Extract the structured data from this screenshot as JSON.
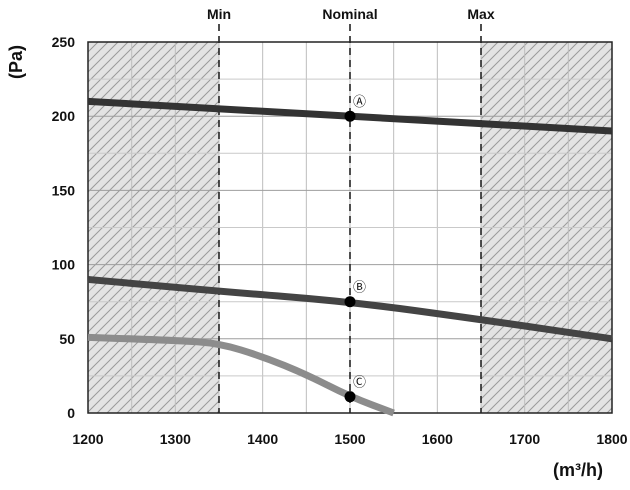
{
  "chart_data": {
    "type": "line",
    "xlabel": "(m³/h)",
    "ylabel": "(Pa)",
    "xlim": [
      1200,
      1800
    ],
    "ylim": [
      0,
      250
    ],
    "x_ticks": [
      "1200",
      "1300",
      "1400",
      "1500",
      "1600",
      "1700",
      "1800"
    ],
    "y_ticks": [
      "0",
      "50",
      "100",
      "150",
      "200",
      "250"
    ],
    "grid": true,
    "shaded_regions": [
      [
        1200,
        1350
      ],
      [
        1650,
        1800
      ]
    ],
    "reference_lines": [
      {
        "label": "Min",
        "x": 1350
      },
      {
        "label": "Nominal",
        "x": 1500
      },
      {
        "label": "Max",
        "x": 1650
      }
    ],
    "series": [
      {
        "label": "A",
        "color": "#333333",
        "points": [
          [
            1200,
            210
          ],
          [
            1500,
            200
          ],
          [
            1800,
            190
          ]
        ]
      },
      {
        "label": "B",
        "color": "#444444",
        "points": [
          [
            1200,
            90
          ],
          [
            1350,
            82
          ],
          [
            1500,
            75
          ],
          [
            1650,
            63
          ],
          [
            1800,
            50
          ]
        ]
      },
      {
        "label": "C",
        "color": "#8c8c8c",
        "points": [
          [
            1200,
            51
          ],
          [
            1300,
            49
          ],
          [
            1350,
            47
          ],
          [
            1400,
            38
          ],
          [
            1450,
            26
          ],
          [
            1500,
            11
          ],
          [
            1550,
            0
          ]
        ]
      }
    ],
    "markers": [
      {
        "label": "Ⓐ",
        "x": 1500,
        "y": 200
      },
      {
        "label": "Ⓑ",
        "x": 1500,
        "y": 75
      },
      {
        "label": "Ⓒ",
        "x": 1500,
        "y": 11
      }
    ]
  }
}
